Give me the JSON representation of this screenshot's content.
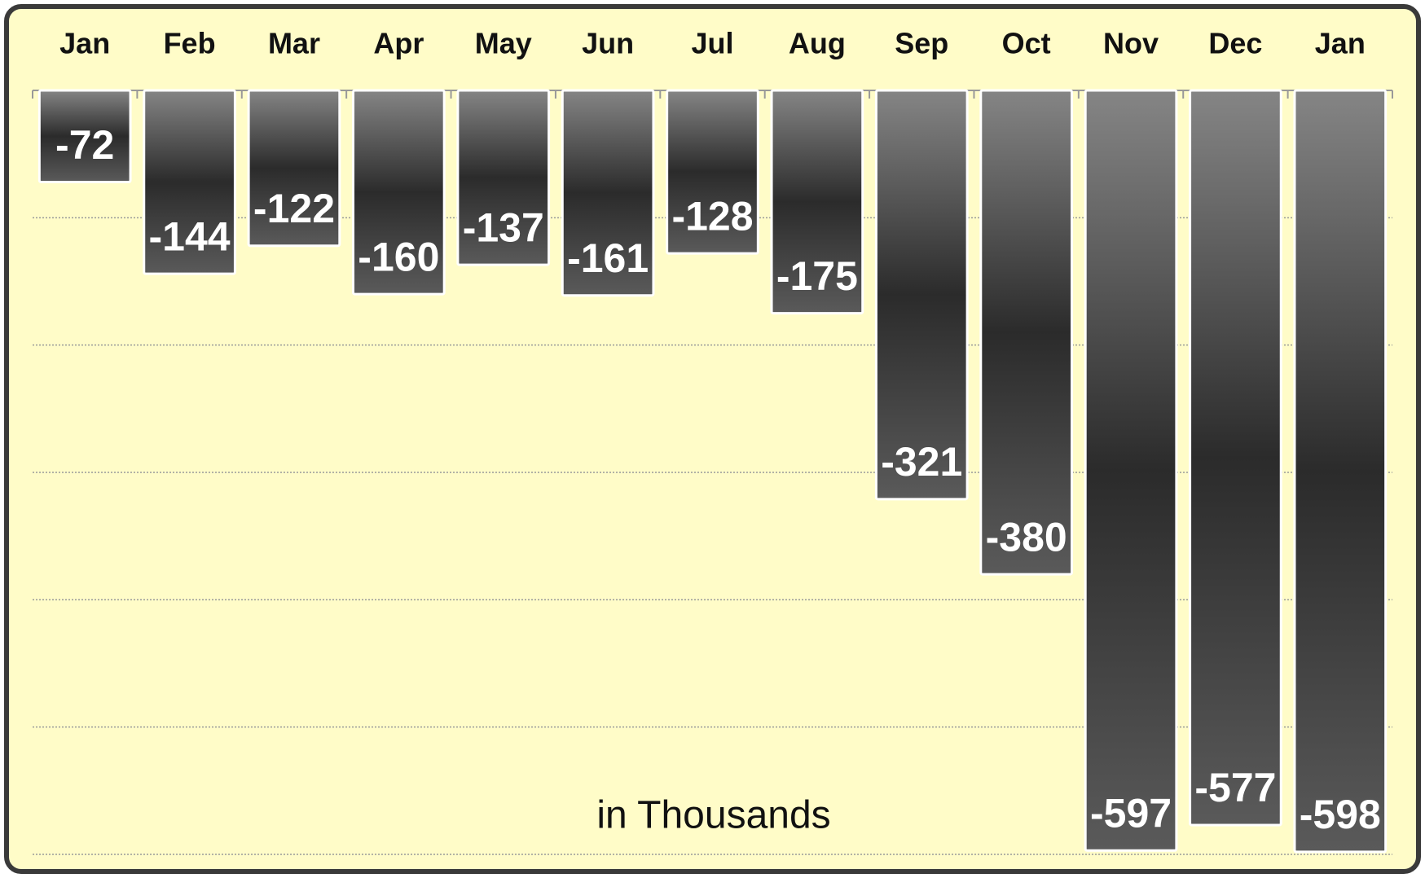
{
  "chart_data": {
    "type": "bar",
    "categories": [
      "Jan",
      "Feb",
      "Mar",
      "Apr",
      "May",
      "Jun",
      "Jul",
      "Aug",
      "Sep",
      "Oct",
      "Nov",
      "Dec",
      "Jan"
    ],
    "values": [
      -72,
      -144,
      -122,
      -160,
      -137,
      -161,
      -128,
      -175,
      -321,
      -380,
      -597,
      -577,
      -598
    ],
    "ylim": [
      -600,
      0
    ],
    "yticks": [
      0,
      -100,
      -200,
      -300,
      -400,
      -500,
      -600
    ],
    "grid": true,
    "annotation": "in Thousands"
  }
}
